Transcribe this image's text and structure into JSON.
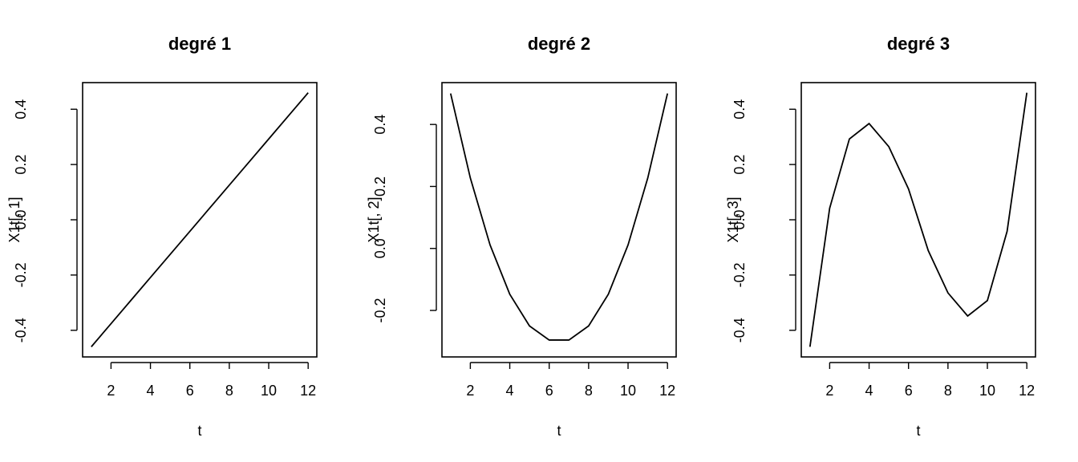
{
  "chart_data": [
    {
      "type": "line",
      "title": "degré 1",
      "xlabel": "t",
      "ylabel": "X1t[, 1]",
      "xlim": [
        0.56,
        12.44
      ],
      "ylim": [
        -0.4964,
        0.4964
      ],
      "xticks": [
        2,
        4,
        6,
        8,
        10,
        12
      ],
      "yticks": [
        -0.4,
        -0.2,
        0.0,
        0.2,
        0.4
      ],
      "xtick_labels": [
        "2",
        "4",
        "6",
        "8",
        "10",
        "12"
      ],
      "ytick_labels": [
        "-0.4",
        "-0.2",
        "0.0",
        "0.2",
        "0.4"
      ],
      "grid": false,
      "color": "#000000",
      "x": [
        1,
        2,
        3,
        4,
        5,
        6,
        7,
        8,
        9,
        10,
        11,
        12
      ],
      "y": [
        -0.4597,
        -0.3761,
        -0.2925,
        -0.2089,
        -0.1254,
        -0.0418,
        0.0418,
        0.1254,
        0.2089,
        0.2925,
        0.3761,
        0.4597
      ]
    },
    {
      "type": "line",
      "title": "degré 2",
      "xlabel": "t",
      "ylabel": "X1t[, 2]",
      "xlim": [
        0.56,
        12.44
      ],
      "ylim": [
        -0.35,
        0.535
      ],
      "xticks": [
        2,
        4,
        6,
        8,
        10,
        12
      ],
      "yticks": [
        -0.2,
        0.0,
        0.2,
        0.4
      ],
      "xtick_labels": [
        "2",
        "4",
        "6",
        "8",
        "10",
        "12"
      ],
      "ytick_labels": [
        "-0.2",
        "0.0",
        "0.2",
        "0.4"
      ],
      "grid": false,
      "color": "#000000",
      "x": [
        1,
        2,
        3,
        4,
        5,
        6,
        7,
        8,
        9,
        10,
        11,
        12
      ],
      "y": [
        0.5,
        0.2273,
        0.0114,
        -0.1477,
        -0.25,
        -0.2955,
        -0.2955,
        -0.25,
        -0.1477,
        0.0114,
        0.2273,
        0.5
      ]
    },
    {
      "type": "line",
      "title": "degré 3",
      "xlabel": "t",
      "ylabel": "X1t[, 3]",
      "xlim": [
        0.56,
        12.44
      ],
      "ylim": [
        -0.4964,
        0.4964
      ],
      "xticks": [
        2,
        4,
        6,
        8,
        10,
        12
      ],
      "yticks": [
        -0.4,
        -0.2,
        0.0,
        0.2,
        0.4
      ],
      "xtick_labels": [
        "2",
        "4",
        "6",
        "8",
        "10",
        "12"
      ],
      "ytick_labels": [
        "-0.4",
        "-0.2",
        "0.0",
        "0.2",
        "0.4"
      ],
      "grid": false,
      "color": "#000000",
      "x": [
        1,
        2,
        3,
        4,
        5,
        6,
        7,
        8,
        9,
        10,
        11,
        12
      ],
      "y": [
        -0.4596,
        0.0418,
        0.2925,
        0.3482,
        0.2647,
        0.1114,
        -0.1114,
        -0.2647,
        -0.3482,
        -0.2925,
        -0.0418,
        0.4596
      ]
    }
  ]
}
